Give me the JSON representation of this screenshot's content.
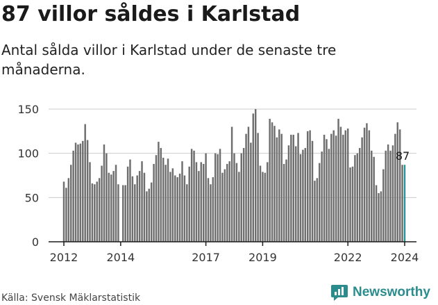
{
  "title": "87 villor såldes i Karlstad",
  "subtitle": "Antal sålda villor i Karlstad under de senaste tre månaderna.",
  "source": "Källa: Svensk Mäklarstatistik",
  "brand": "Newsworthy",
  "colors": {
    "bar": "#6e6e6e",
    "highlight": "#2a9393",
    "axis": "#1a1a1a",
    "grid": "#cccccc",
    "brand": "#2a8c8c"
  },
  "chart_data": {
    "type": "bar",
    "title": "87 villor såldes i Karlstad",
    "subtitle": "Antal sålda villor i Karlstad under de senaste tre månaderna.",
    "xlabel": "",
    "ylabel": "",
    "ylim": [
      0,
      155
    ],
    "yticks": [
      0,
      50,
      100,
      150
    ],
    "xtick_labels": [
      "2012",
      "2014",
      "2017",
      "2019",
      "2022",
      "2024"
    ],
    "x_start_month": "2012-01",
    "x_end_month": "2024-01",
    "categories": [
      "2012-01",
      "2012-02",
      "2012-03",
      "2012-04",
      "2012-05",
      "2012-06",
      "2012-07",
      "2012-08",
      "2012-09",
      "2012-10",
      "2012-11",
      "2012-12",
      "2013-01",
      "2013-02",
      "2013-03",
      "2013-04",
      "2013-05",
      "2013-06",
      "2013-07",
      "2013-08",
      "2013-09",
      "2013-10",
      "2013-11",
      "2013-12",
      "2014-01",
      "2014-02",
      "2014-03",
      "2014-04",
      "2014-05",
      "2014-06",
      "2014-07",
      "2014-08",
      "2014-09",
      "2014-10",
      "2014-11",
      "2014-12",
      "2015-01",
      "2015-02",
      "2015-03",
      "2015-04",
      "2015-05",
      "2015-06",
      "2015-07",
      "2015-08",
      "2015-09",
      "2015-10",
      "2015-11",
      "2015-12",
      "2016-01",
      "2016-02",
      "2016-03",
      "2016-04",
      "2016-05",
      "2016-06",
      "2016-07",
      "2016-08",
      "2016-09",
      "2016-10",
      "2016-11",
      "2016-12",
      "2017-01",
      "2017-02",
      "2017-03",
      "2017-04",
      "2017-05",
      "2017-06",
      "2017-07",
      "2017-08",
      "2017-09",
      "2017-10",
      "2017-11",
      "2017-12",
      "2018-01",
      "2018-02",
      "2018-03",
      "2018-04",
      "2018-05",
      "2018-06",
      "2018-07",
      "2018-08",
      "2018-09",
      "2018-10",
      "2018-11",
      "2018-12",
      "2019-01",
      "2019-02",
      "2019-03",
      "2019-04",
      "2019-05",
      "2019-06",
      "2019-07",
      "2019-08",
      "2019-09",
      "2019-10",
      "2019-11",
      "2019-12",
      "2020-01",
      "2020-02",
      "2020-03",
      "2020-04",
      "2020-05",
      "2020-06",
      "2020-07",
      "2020-08",
      "2020-09",
      "2020-10",
      "2020-11",
      "2020-12",
      "2021-01",
      "2021-02",
      "2021-03",
      "2021-04",
      "2021-05",
      "2021-06",
      "2021-07",
      "2021-08",
      "2021-09",
      "2021-10",
      "2021-11",
      "2021-12",
      "2022-01",
      "2022-02",
      "2022-03",
      "2022-04",
      "2022-05",
      "2022-06",
      "2022-07",
      "2022-08",
      "2022-09",
      "2022-10",
      "2022-11",
      "2022-12",
      "2023-01",
      "2023-02",
      "2023-03",
      "2023-04",
      "2023-05",
      "2023-06",
      "2023-07",
      "2023-08",
      "2023-09",
      "2023-10",
      "2023-11",
      "2023-12",
      "2024-01"
    ],
    "values": [
      68,
      61,
      72,
      87,
      103,
      112,
      110,
      111,
      114,
      133,
      115,
      90,
      66,
      65,
      68,
      72,
      86,
      110,
      100,
      78,
      76,
      80,
      87,
      65,
      0,
      64,
      64,
      85,
      93,
      74,
      65,
      75,
      80,
      91,
      78,
      57,
      60,
      67,
      88,
      98,
      113,
      106,
      95,
      87,
      94,
      79,
      83,
      75,
      73,
      77,
      91,
      75,
      65,
      85,
      105,
      103,
      90,
      80,
      90,
      88,
      100,
      72,
      65,
      73,
      100,
      99,
      105,
      78,
      82,
      88,
      91,
      130,
      100,
      89,
      79,
      100,
      106,
      122,
      130,
      112,
      145,
      150,
      123,
      86,
      79,
      78,
      90,
      139,
      135,
      131,
      118,
      127,
      122,
      88,
      93,
      109,
      121,
      121,
      108,
      123,
      99,
      104,
      106,
      125,
      126,
      114,
      69,
      72,
      89,
      102,
      121,
      116,
      105,
      122,
      126,
      120,
      139,
      130,
      121,
      126,
      128,
      84,
      85,
      98,
      100,
      106,
      118,
      129,
      134,
      126,
      103,
      96,
      64,
      55,
      57,
      82,
      103,
      110,
      103,
      109,
      122,
      135,
      127,
      87,
      87
    ],
    "highlight_index": 144,
    "annotation": "87"
  }
}
